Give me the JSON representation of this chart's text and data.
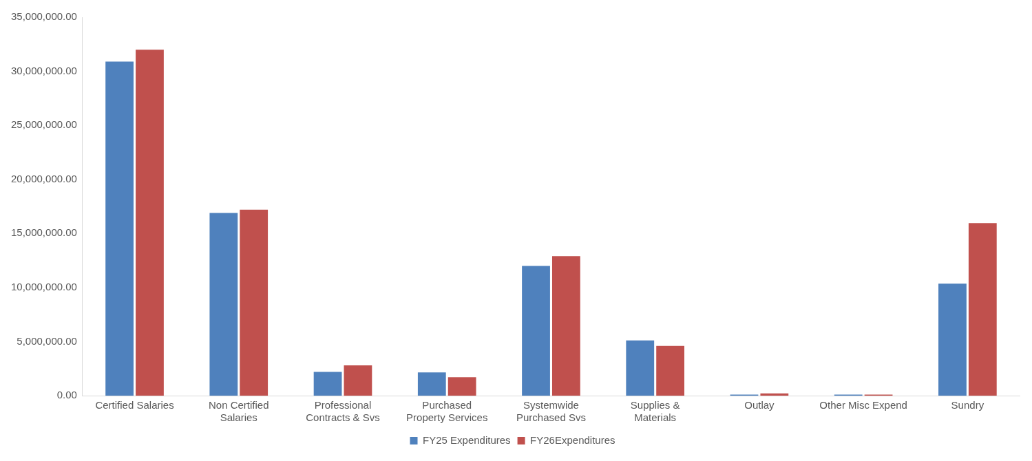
{
  "chart_data": {
    "type": "bar",
    "categories": [
      "Certified Salaries",
      "Non Certified Salaries",
      "Professional Contracts & Svs",
      "Purchased Property Services",
      "Systemwide Purchased Svs",
      "Supplies & Materials",
      "Outlay",
      "Other Misc Expend",
      "Sundry"
    ],
    "series": [
      {
        "name": "FY25 Expenditures",
        "color": "#4f81bd",
        "values": [
          30900000,
          16900000,
          2200000,
          2150000,
          12000000,
          5100000,
          100000,
          100000,
          10350000
        ]
      },
      {
        "name": "FY26Expenditures",
        "color": "#c0504d",
        "values": [
          32000000,
          17200000,
          2800000,
          1700000,
          12900000,
          4600000,
          200000,
          100000,
          15950000
        ]
      }
    ],
    "ylim": [
      0,
      35000000
    ],
    "yticks": [
      {
        "value": 0,
        "label": "0.00"
      },
      {
        "value": 5000000,
        "label": "5,000,000.00"
      },
      {
        "value": 10000000,
        "label": "10,000,000.00"
      },
      {
        "value": 15000000,
        "label": "15,000,000.00"
      },
      {
        "value": 20000000,
        "label": "20,000,000.00"
      },
      {
        "value": 25000000,
        "label": "25,000,000.00"
      },
      {
        "value": 30000000,
        "label": "30,000,000.00"
      },
      {
        "value": 35000000,
        "label": "35,000,000.00"
      }
    ],
    "grid": false,
    "legend": "bottom"
  }
}
